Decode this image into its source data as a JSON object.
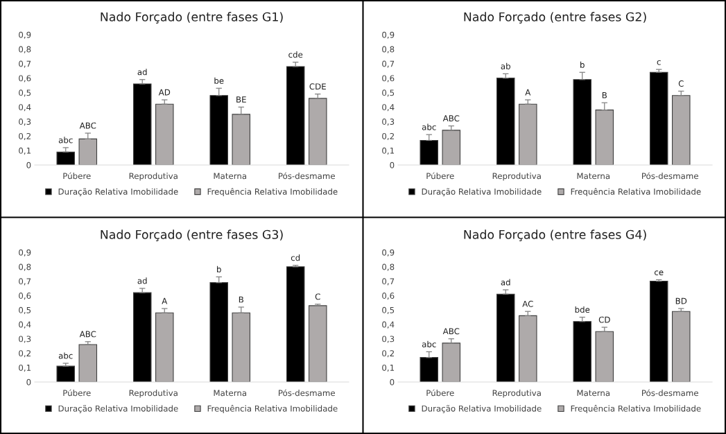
{
  "chart_data": [
    {
      "type": "bar",
      "title": "Nado Forçado (entre fases G1)",
      "categories": [
        "Púbere",
        "Reprodutiva",
        "Materna",
        "Pós-desmame"
      ],
      "ylim": [
        0,
        0.9
      ],
      "yticks": [
        {
          "value": 0,
          "label": "0"
        },
        {
          "value": 0.1,
          "label": "0,1"
        },
        {
          "value": 0.2,
          "label": "0,2"
        },
        {
          "value": 0.3,
          "label": "0,3"
        },
        {
          "value": 0.4,
          "label": "0,4"
        },
        {
          "value": 0.5,
          "label": "0,5"
        },
        {
          "value": 0.6,
          "label": "0,6"
        },
        {
          "value": 0.7,
          "label": "0,7"
        },
        {
          "value": 0.8,
          "label": "0,8"
        },
        {
          "value": 0.9,
          "label": "0,9"
        }
      ],
      "grid": false,
      "legend": "bottom",
      "series": [
        {
          "name": "Duração Relativa Imobilidade",
          "color": "#000000",
          "values": [
            0.09,
            0.56,
            0.48,
            0.68
          ],
          "errors": [
            0.03,
            0.03,
            0.05,
            0.03
          ]
        },
        {
          "name": "Frequência Relativa Imobilidade",
          "color": "#aeaaaa",
          "values": [
            0.18,
            0.42,
            0.35,
            0.46
          ],
          "errors": [
            0.04,
            0.03,
            0.05,
            0.03
          ]
        }
      ],
      "annotations": [
        "abc",
        "ABC",
        "ad",
        "AD",
        "be",
        "BE",
        "cde",
        "CDE"
      ]
    },
    {
      "type": "bar",
      "title": "Nado Forçado (entre fases G2)",
      "categories": [
        "Púbere",
        "Reprodutiva",
        "Materna",
        "Pós-desmame"
      ],
      "ylim": [
        0,
        0.9
      ],
      "yticks": [
        {
          "value": 0,
          "label": "0"
        },
        {
          "value": 0.1,
          "label": "0,1"
        },
        {
          "value": 0.2,
          "label": "0,2"
        },
        {
          "value": 0.3,
          "label": "0,3"
        },
        {
          "value": 0.4,
          "label": "0,4"
        },
        {
          "value": 0.5,
          "label": "0,5"
        },
        {
          "value": 0.6,
          "label": "0,6"
        },
        {
          "value": 0.7,
          "label": "0,7"
        },
        {
          "value": 0.8,
          "label": "0,8"
        },
        {
          "value": 0.9,
          "label": "0,9"
        }
      ],
      "grid": false,
      "legend": "bottom",
      "series": [
        {
          "name": "Duração Relativa Imobilidade",
          "color": "#000000",
          "values": [
            0.17,
            0.6,
            0.59,
            0.64
          ],
          "errors": [
            0.04,
            0.03,
            0.05,
            0.02
          ]
        },
        {
          "name": "Frequência Relativa Imobilidade",
          "color": "#aeaaaa",
          "values": [
            0.24,
            0.42,
            0.38,
            0.48
          ],
          "errors": [
            0.03,
            0.03,
            0.05,
            0.03
          ]
        }
      ],
      "annotations": [
        "abc",
        "ABC",
        "ab",
        "A",
        "b",
        "B",
        "c",
        "C"
      ]
    },
    {
      "type": "bar",
      "title": "Nado Forçado (entre fases G3)",
      "categories": [
        "Púbere",
        "Reprodutiva",
        "Materna",
        "Pós-desmame"
      ],
      "ylim": [
        0,
        0.9
      ],
      "yticks": [
        {
          "value": 0,
          "label": "0"
        },
        {
          "value": 0.1,
          "label": "0,1"
        },
        {
          "value": 0.2,
          "label": "0,2"
        },
        {
          "value": 0.3,
          "label": "0,3"
        },
        {
          "value": 0.4,
          "label": "0,4"
        },
        {
          "value": 0.5,
          "label": "0,5"
        },
        {
          "value": 0.6,
          "label": "0,6"
        },
        {
          "value": 0.7,
          "label": "0,7"
        },
        {
          "value": 0.8,
          "label": "0,8"
        },
        {
          "value": 0.9,
          "label": "0,9"
        }
      ],
      "grid": false,
      "legend": "bottom",
      "series": [
        {
          "name": "Duração Relativa Imobilidade",
          "color": "#000000",
          "values": [
            0.11,
            0.62,
            0.69,
            0.8
          ],
          "errors": [
            0.02,
            0.03,
            0.04,
            0.01
          ]
        },
        {
          "name": "Frequência Relativa Imobilidade",
          "color": "#aeaaaa",
          "values": [
            0.26,
            0.48,
            0.48,
            0.53
          ],
          "errors": [
            0.02,
            0.03,
            0.04,
            0.01
          ]
        }
      ],
      "annotations": [
        "abc",
        "ABC",
        "ad",
        "A",
        "b",
        "B",
        "cd",
        "C"
      ]
    },
    {
      "type": "bar",
      "title": "Nado Forçado (entre fases G4)",
      "categories": [
        "Púbere",
        "Reprodutiva",
        "Materna",
        "Pós-desmame"
      ],
      "ylim": [
        0,
        0.9
      ],
      "yticks": [
        {
          "value": 0,
          "label": "0"
        },
        {
          "value": 0.1,
          "label": "0,1"
        },
        {
          "value": 0.2,
          "label": "0,2"
        },
        {
          "value": 0.3,
          "label": "0,3"
        },
        {
          "value": 0.4,
          "label": "0,4"
        },
        {
          "value": 0.5,
          "label": "0,5"
        },
        {
          "value": 0.6,
          "label": "0,6"
        },
        {
          "value": 0.7,
          "label": "0,7"
        },
        {
          "value": 0.8,
          "label": "0,8"
        },
        {
          "value": 0.9,
          "label": "0,9"
        }
      ],
      "grid": false,
      "legend": "bottom",
      "series": [
        {
          "name": "Duração Relativa Imobilidade",
          "color": "#000000",
          "values": [
            0.17,
            0.61,
            0.42,
            0.7
          ],
          "errors": [
            0.04,
            0.03,
            0.03,
            0.01
          ]
        },
        {
          "name": "Frequência Relativa Imobilidade",
          "color": "#aeaaaa",
          "values": [
            0.27,
            0.46,
            0.35,
            0.49
          ],
          "errors": [
            0.03,
            0.03,
            0.03,
            0.02
          ]
        }
      ],
      "annotations": [
        "abc",
        "ABC",
        "ad",
        "AC",
        "bde",
        "CD",
        "ce",
        "BD"
      ]
    }
  ]
}
